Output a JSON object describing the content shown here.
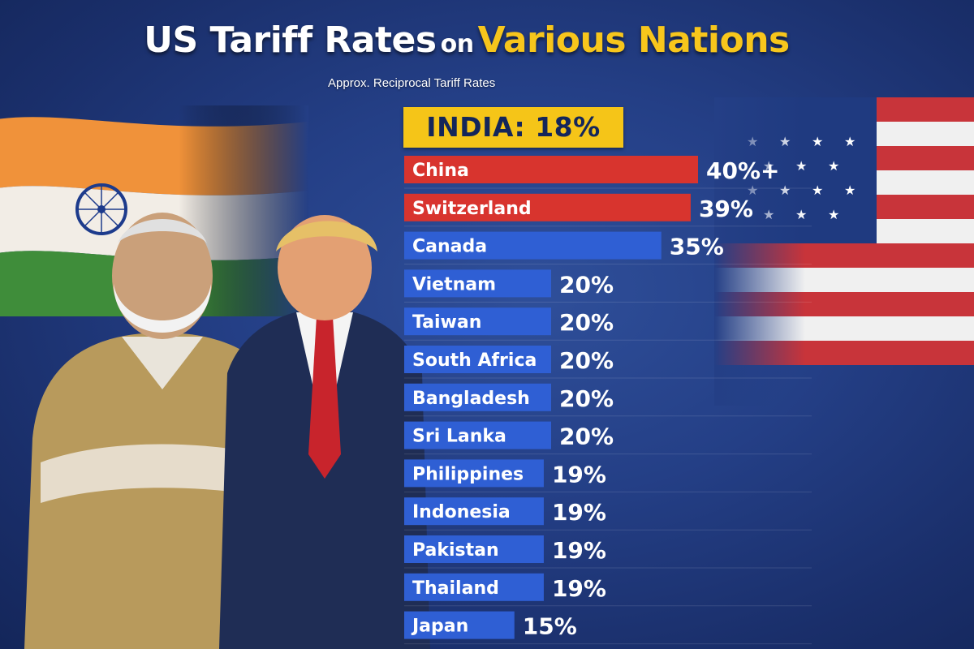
{
  "title": {
    "part1": "US Tariff Rates",
    "part2": "on",
    "part3": "Various Nations"
  },
  "subtitle": "Approx. Reciprocal Tariff Rates",
  "highlight": {
    "text": "INDIA: 18%",
    "color": "#f5c518"
  },
  "colors": {
    "high": "#d8342e",
    "normal": "#2f5fd4",
    "value_text": "#ffffff"
  },
  "chart_data": {
    "type": "bar",
    "orientation": "horizontal",
    "categories": [
      "China",
      "Switzerland",
      "Canada",
      "Vietnam",
      "Taiwan",
      "South Africa",
      "Bangladesh",
      "Sri Lanka",
      "Philippines",
      "Indonesia",
      "Pakistan",
      "Thailand",
      "Japan"
    ],
    "values": [
      40,
      39,
      35,
      20,
      20,
      20,
      20,
      20,
      19,
      19,
      19,
      19,
      15
    ],
    "value_labels": [
      "40%+",
      "39%",
      "35%",
      "20%",
      "20%",
      "20%",
      "20%",
      "20%",
      "19%",
      "19%",
      "19%",
      "19%",
      "15%"
    ],
    "bar_colors": [
      "#d8342e",
      "#d8342e",
      "#2f5fd4",
      "#2f5fd4",
      "#2f5fd4",
      "#2f5fd4",
      "#2f5fd4",
      "#2f5fd4",
      "#2f5fd4",
      "#2f5fd4",
      "#2f5fd4",
      "#2f5fd4",
      "#2f5fd4"
    ],
    "grid": false,
    "legend": "none"
  }
}
